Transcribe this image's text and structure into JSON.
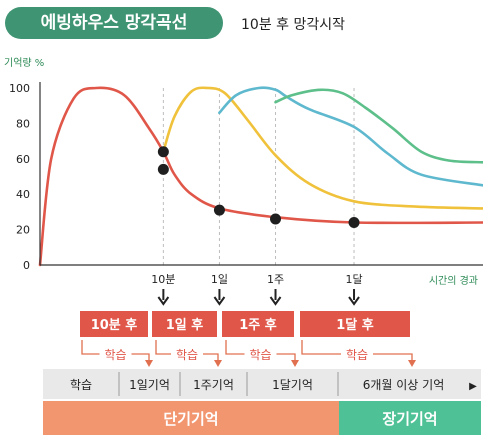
{
  "header": {
    "title": "에빙하우스 망각곡선",
    "subtitle": "10분 후 망각시작"
  },
  "colors": {
    "red": "#e0574a",
    "yellow": "#f0c23c",
    "blue": "#5eb8ce",
    "green": "#5dbf8a",
    "dot": "#1f1f1f",
    "box_red": "#e0574a",
    "band_orange": "#f29670",
    "band_green": "#4fc196",
    "gray": "#e9e9e9",
    "axis_text": "#2e8b57"
  },
  "chart_data": {
    "type": "line",
    "ylabel": "기억량 %",
    "xlabel": "시간의 경과",
    "ylim": [
      0,
      100
    ],
    "yticks": [
      "0",
      "20",
      "40",
      "60",
      "80",
      "100"
    ],
    "xticks": [
      {
        "label": "10분",
        "x": 1
      },
      {
        "label": "1일",
        "x": 2
      },
      {
        "label": "1주",
        "x": 3
      },
      {
        "label": "1달",
        "x": 4.4
      }
    ],
    "xlim": [
      -1.2,
      6.7
    ],
    "series": [
      {
        "color": "red",
        "points": [
          [
            -1.2,
            0
          ],
          [
            -1,
            60
          ],
          [
            -0.6,
            94
          ],
          [
            -0.2,
            100
          ],
          [
            0.3,
            96
          ],
          [
            0.75,
            77
          ],
          [
            1,
            64
          ],
          [
            1.2,
            51
          ],
          [
            1.5,
            40
          ],
          [
            2,
            32
          ],
          [
            3,
            27
          ],
          [
            4.4,
            24
          ],
          [
            6.7,
            24
          ]
        ]
      },
      {
        "color": "yellow",
        "points": [
          [
            1,
            64
          ],
          [
            1.2,
            84
          ],
          [
            1.5,
            98
          ],
          [
            1.8,
            100
          ],
          [
            2.1,
            97
          ],
          [
            2.5,
            82
          ],
          [
            3,
            62
          ],
          [
            3.6,
            46
          ],
          [
            4.4,
            36
          ],
          [
            5.5,
            33
          ],
          [
            6.7,
            32
          ]
        ]
      },
      {
        "color": "blue",
        "points": [
          [
            2,
            86
          ],
          [
            2.3,
            96
          ],
          [
            2.7,
            100
          ],
          [
            3,
            99
          ],
          [
            3.2,
            95
          ],
          [
            3.6,
            88
          ],
          [
            4.4,
            78
          ],
          [
            5,
            63
          ],
          [
            5.6,
            51
          ],
          [
            6.7,
            45
          ]
        ]
      },
      {
        "color": "green",
        "points": [
          [
            3,
            92
          ],
          [
            3.3,
            96
          ],
          [
            3.8,
            99
          ],
          [
            4.2,
            97
          ],
          [
            4.6,
            89
          ],
          [
            5.1,
            77
          ],
          [
            5.6,
            64
          ],
          [
            6.1,
            59
          ],
          [
            6.7,
            58
          ]
        ]
      }
    ],
    "markers": [
      [
        1,
        64
      ],
      [
        1,
        54
      ],
      [
        2,
        31
      ],
      [
        3,
        26
      ],
      [
        4.4,
        24
      ]
    ]
  },
  "review_boxes": [
    "10분 후",
    "1일 후",
    "1주 후",
    "1달 후"
  ],
  "study_labels": [
    "학습",
    "학습",
    "학습",
    "학습"
  ],
  "timeline": [
    "학습",
    "1일기억",
    "1주기억",
    "1달기억",
    "6개월 이상 기억"
  ],
  "timeline_arrow": "▶",
  "bands": {
    "short": "단기기억",
    "long": "장기기억"
  }
}
